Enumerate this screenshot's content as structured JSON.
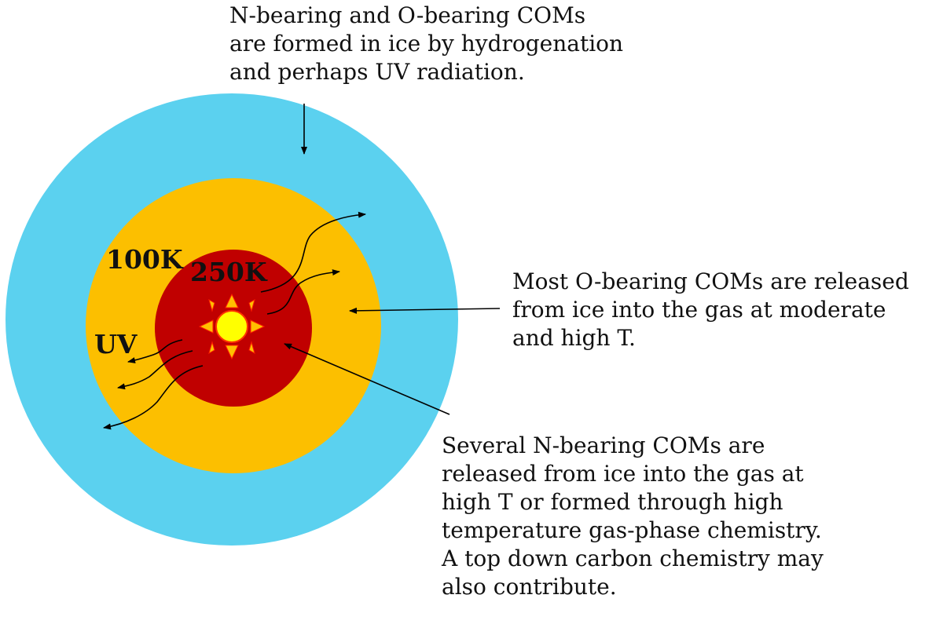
{
  "captions": {
    "top": "N-bearing  and O-bearing COMs\nare formed in ice by hydrogenation\nand perhaps UV radiation.",
    "right": "Most O-bearing COMs are released\nfrom ice into the gas at moderate\nand high T.",
    "bottom": "Several N-bearing COMs are\nreleased from ice into the gas at\nhigh T or formed through high\ntemperature gas-phase chemistry.\nA top down carbon chemistry may\nalso contribute."
  },
  "zone_labels": {
    "outer_temp": "100K",
    "inner_temp": "250K",
    "uv": "UV"
  },
  "colors": {
    "outer_envelope": "#5bd1ef",
    "warm_zone": "#fcbf00",
    "hot_core": "#c00000",
    "star": "#ffff00",
    "star_rays": "#ffc000"
  },
  "icons": {
    "central_star": "sun-icon"
  }
}
